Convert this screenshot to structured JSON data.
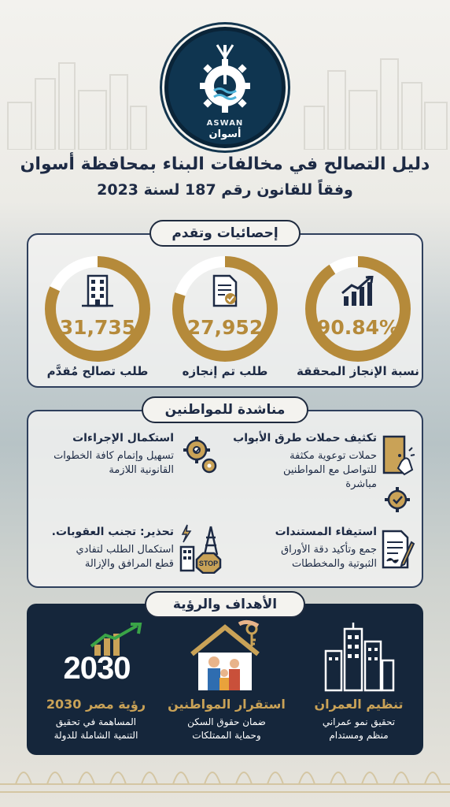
{
  "logo": {
    "text_en": "ASWAN",
    "text_ar": "أسوان"
  },
  "title": "دليل التصالح في مخالفات البناء بمحافظة أسوان",
  "subtitle": "وفقاً للقانون رقم 187 لسنة 2023",
  "stats": {
    "heading": "إحصائيات وتقدم",
    "items": [
      {
        "value": "90.84%",
        "label": "نسبة الإنجاز المحققة",
        "icon": "growth-chart-icon",
        "progress": 0.9084
      },
      {
        "value": "27,952",
        "label": "طلب تم إنجازه",
        "icon": "document-check-icon",
        "progress": 0.8
      },
      {
        "value": "31,735",
        "label": "طلب تصالح مُقدَّم",
        "icon": "building-icon",
        "progress": 0.82
      }
    ]
  },
  "appeal": {
    "heading": "مناشدة للمواطنين",
    "items": [
      {
        "title": "تكثيف حملات طرق الأبواب",
        "lines": [
          "حملات توعوية مكثفة",
          "للتواصل مع المواطنين",
          "مباشرة"
        ],
        "icon": "door-knock-icon"
      },
      {
        "title": "استكمال الإجراءات",
        "lines": [
          "تسهيل وإتمام كافة الخطوات",
          "القانونية اللازمة"
        ],
        "icon": "gears-icon"
      },
      {
        "title": "استيفاء المستندات",
        "lines": [
          "جمع وتأكيد دقة الأوراق",
          "الثبوتية والمخططات"
        ],
        "icon": "document-sign-icon"
      },
      {
        "title": "تحذير: تجنب العقوبات.",
        "lines": [
          "استكمال الطلب لتفادي",
          "قطع المرافق والإزالة"
        ],
        "icon": "stop-sign-icon"
      }
    ]
  },
  "goals": {
    "heading": "الأهداف والرؤية",
    "year": "2030",
    "items": [
      {
        "title": "تنظيم العمران",
        "lines": [
          "تحقيق نمو عمراني",
          "منظم ومستدام"
        ],
        "icon": "skyscrapers-icon"
      },
      {
        "title": "استقرار المواطنين",
        "lines": [
          "ضمان حقوق السكن",
          "وحماية الممتلكات"
        ],
        "icon": "family-house-icon"
      },
      {
        "title": "رؤية مصر 2030",
        "lines": [
          "المساهمة في تحقيق",
          "التنمية الشاملة للدولة"
        ],
        "icon": "vision-2030-icon"
      }
    ]
  },
  "colors": {
    "navy": "#15263b",
    "gold": "#b58a3a",
    "gold_light": "#c9a257",
    "ring_track": "#ffffff"
  }
}
